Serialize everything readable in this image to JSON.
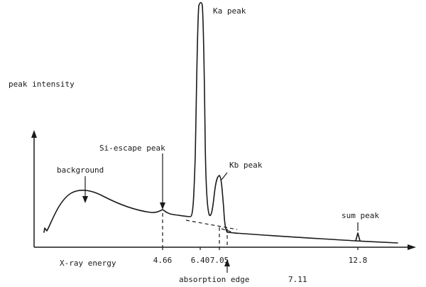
{
  "chart_data": {
    "type": "line",
    "title": "",
    "ylabel": "peak intensity",
    "xlabel": "X-ray energy",
    "x_ticks": [
      "4.66",
      "6.40",
      "7.05",
      "12.8"
    ],
    "annotations": {
      "background": "background",
      "si_escape": "Si-escape peak",
      "ka": "Ka peak",
      "kb": "Kb peak",
      "sum": "sum peak",
      "absorption_edge": "absorption edge",
      "absorption_edge_value": "7.11"
    },
    "peaks": [
      {
        "name": "Si-escape peak",
        "energy": 4.66
      },
      {
        "name": "Ka peak",
        "energy": 6.4
      },
      {
        "name": "Kb peak",
        "energy": 7.05
      },
      {
        "name": "sum peak",
        "energy": 12.8
      }
    ],
    "absorption_edge_energy": 7.11,
    "grid": false,
    "legend": "none"
  }
}
